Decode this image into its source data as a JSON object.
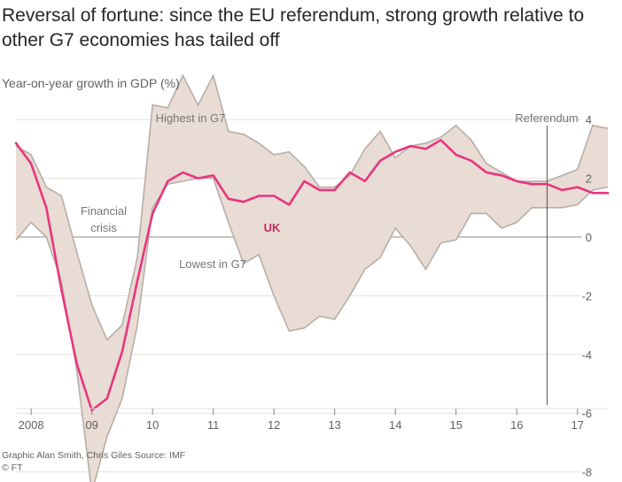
{
  "chart_data": {
    "type": "area",
    "title": "Reversal of fortune: since the EU referendum, strong growth relative to other G7 economies has tailed off",
    "ylabel": "Year-on-year growth in GDP (%)",
    "xlabel": "",
    "ylim": [
      -8.5,
      6
    ],
    "yticks": [
      4,
      2,
      0,
      -2,
      -4,
      -6,
      -8
    ],
    "xlim": [
      2007.75,
      2017.5
    ],
    "xticks": [
      {
        "value": 2008,
        "label": "2008"
      },
      {
        "value": 2009,
        "label": "09"
      },
      {
        "value": 2010,
        "label": "10"
      },
      {
        "value": 2011,
        "label": "11"
      },
      {
        "value": 2012,
        "label": "12"
      },
      {
        "value": 2013,
        "label": "13"
      },
      {
        "value": 2014,
        "label": "14"
      },
      {
        "value": 2015,
        "label": "15"
      },
      {
        "value": 2016,
        "label": "16"
      },
      {
        "value": 2017,
        "label": "17"
      }
    ],
    "x": [
      2007.75,
      2008.0,
      2008.25,
      2008.5,
      2008.75,
      2009.0,
      2009.25,
      2009.5,
      2009.75,
      2010.0,
      2010.25,
      2010.5,
      2010.75,
      2011.0,
      2011.25,
      2011.5,
      2011.75,
      2012.0,
      2012.25,
      2012.5,
      2012.75,
      2013.0,
      2013.25,
      2013.5,
      2013.75,
      2014.0,
      2014.25,
      2014.5,
      2014.75,
      2015.0,
      2015.25,
      2015.5,
      2015.75,
      2016.0,
      2016.25,
      2016.5,
      2016.75,
      2017.0,
      2017.25,
      2017.5
    ],
    "series": [
      {
        "name": "Highest in G7",
        "values": [
          3.1,
          2.8,
          1.7,
          1.4,
          -0.5,
          -2.3,
          -3.5,
          -3.0,
          -0.7,
          4.5,
          4.4,
          5.5,
          4.5,
          5.5,
          3.6,
          3.5,
          3.2,
          2.8,
          2.9,
          2.4,
          1.7,
          1.7,
          2.1,
          3.0,
          3.6,
          2.7,
          3.1,
          3.2,
          3.4,
          3.8,
          3.3,
          2.5,
          2.2,
          1.9,
          1.9,
          1.9,
          2.1,
          2.3,
          3.8,
          3.7
        ]
      },
      {
        "name": "UK",
        "values": [
          3.2,
          2.5,
          1.0,
          -1.8,
          -4.3,
          -5.9,
          -5.5,
          -3.9,
          -1.5,
          0.8,
          1.9,
          2.2,
          2.0,
          2.1,
          1.3,
          1.2,
          1.4,
          1.4,
          1.1,
          1.9,
          1.6,
          1.6,
          2.2,
          1.9,
          2.6,
          2.9,
          3.1,
          3.0,
          3.3,
          2.8,
          2.6,
          2.2,
          2.1,
          1.9,
          1.8,
          1.8,
          1.6,
          1.7,
          1.5,
          1.5
        ]
      },
      {
        "name": "Lowest in G7",
        "values": [
          -0.1,
          0.5,
          0.0,
          -1.5,
          -4.5,
          -8.7,
          -6.8,
          -5.5,
          -3.0,
          1.0,
          1.8,
          1.9,
          2.0,
          2.0,
          0.5,
          -0.9,
          -0.6,
          -2.0,
          -3.2,
          -3.1,
          -2.7,
          -2.8,
          -2.0,
          -1.1,
          -0.7,
          0.3,
          -0.3,
          -1.1,
          -0.2,
          -0.1,
          0.8,
          0.8,
          0.3,
          0.5,
          1.0,
          1.0,
          1.0,
          1.1,
          1.6,
          1.7
        ]
      }
    ],
    "referendum_x": 2016.5,
    "annotations": {
      "referendum": "Referendum",
      "highest": "Highest in G7",
      "lowest": "Lowest in G7",
      "uk": "UK",
      "financial_line1": "Financial",
      "financial_line2": "crisis"
    },
    "colors": {
      "band_fill": "#e8dcd4",
      "band_stroke": "#b8aea7",
      "uk_line": "#e8357f",
      "uk_label": "#c52a5f",
      "grid": "#e6e1dd",
      "zero_line": "#a8a09a",
      "referendum_line": "#6b6460"
    }
  },
  "footer": {
    "credits": "Graphic Alan Smith, Chris Giles   Source: IMF",
    "copyright": "© FT"
  }
}
